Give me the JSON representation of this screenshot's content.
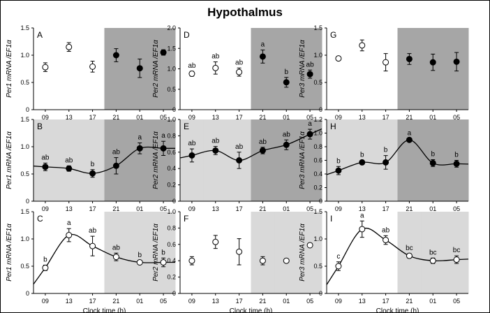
{
  "title": "Hypothalmus",
  "colors": {
    "white": "#ffffff",
    "light_gray": "#d9d9d9",
    "dark_gray": "#a6a6a6",
    "marker_filled": "#000000",
    "marker_open": "#ffffff",
    "curve": "#000000"
  },
  "x_categories": [
    "09",
    "13",
    "17",
    "21",
    "01",
    "05"
  ],
  "xlabel": "Clock time (h)",
  "chart_data": [
    {
      "id": "A",
      "type": "scatter",
      "label": "A",
      "ylabel": "Per1 mRNA /EF1α",
      "ylim": [
        0,
        1.5
      ],
      "yticks": [
        "0",
        "0.5",
        "1.0",
        "1.5"
      ],
      "ytick_values": [
        0,
        0.5,
        1.0,
        1.5
      ],
      "background": [
        "white",
        "white",
        "white",
        "dark_gray",
        "dark_gray",
        "dark_gray"
      ],
      "markers": [
        "open",
        "open",
        "open",
        "filled",
        "filled",
        "filled"
      ],
      "values": [
        0.78,
        1.15,
        0.79,
        1.0,
        0.76,
        1.05
      ],
      "errors": [
        0.08,
        0.08,
        0.1,
        0.12,
        0.17,
        0.05
      ],
      "sig": [
        "",
        "",
        "",
        "",
        "",
        ""
      ],
      "curve": false
    },
    {
      "id": "D",
      "type": "scatter",
      "label": "D",
      "ylabel": "Per2 mRNA /EF1α",
      "ylim": [
        0,
        2.0
      ],
      "yticks": [
        "0",
        "0.5",
        "1.0",
        "1.5",
        "2.0"
      ],
      "ytick_values": [
        0,
        0.5,
        1.0,
        1.5,
        2.0
      ],
      "background": [
        "white",
        "white",
        "white",
        "dark_gray",
        "dark_gray",
        "dark_gray"
      ],
      "markers": [
        "open",
        "open",
        "open",
        "filled",
        "filled",
        "filled"
      ],
      "values": [
        0.88,
        1.02,
        0.92,
        1.3,
        0.67,
        0.87
      ],
      "errors": [
        0.06,
        0.15,
        0.1,
        0.16,
        0.12,
        0.1
      ],
      "sig": [
        "ab",
        "ab",
        "ab",
        "a",
        "b",
        "ab"
      ],
      "curve": false
    },
    {
      "id": "G",
      "type": "scatter",
      "label": "G",
      "ylabel": "Per3 mRNA /EF1α",
      "ylim": [
        0,
        1.5
      ],
      "yticks": [
        "0",
        "0.5",
        "1.0",
        "1.5"
      ],
      "ytick_values": [
        0,
        0.5,
        1.0,
        1.5
      ],
      "background": [
        "white",
        "white",
        "white",
        "dark_gray",
        "dark_gray",
        "dark_gray"
      ],
      "markers": [
        "open",
        "open",
        "open",
        "filled",
        "filled",
        "filled"
      ],
      "values": [
        0.94,
        1.18,
        0.87,
        0.93,
        0.87,
        0.88
      ],
      "errors": [
        0.02,
        0.1,
        0.16,
        0.1,
        0.15,
        0.17
      ],
      "sig": [
        "",
        "",
        "",
        "",
        "",
        ""
      ],
      "curve": false
    },
    {
      "id": "B",
      "type": "scatter",
      "label": "B",
      "ylabel": "Per1 mRNA /EF1α",
      "ylim": [
        0,
        1.5
      ],
      "yticks": [
        "0",
        "0.5",
        "1.0",
        "1.5"
      ],
      "ytick_values": [
        0,
        0.5,
        1.0,
        1.5
      ],
      "background": [
        "light_gray",
        "light_gray",
        "light_gray",
        "dark_gray",
        "dark_gray",
        "dark_gray"
      ],
      "markers": [
        "filled",
        "filled",
        "filled",
        "filled",
        "filled",
        "filled"
      ],
      "values": [
        0.63,
        0.6,
        0.51,
        0.65,
        0.97,
        0.97
      ],
      "errors": [
        0.07,
        0.05,
        0.07,
        0.15,
        0.1,
        0.13
      ],
      "sig": [
        "ab",
        "ab",
        "b",
        "ab",
        "a",
        "a"
      ],
      "curve": true
    },
    {
      "id": "E",
      "type": "scatter",
      "label": "E",
      "ylabel": "Per2 mRNA /EF1α",
      "ylim": [
        0,
        1.0
      ],
      "yticks": [
        "0",
        "0.2",
        "0.4",
        "0.6",
        "0.8",
        "1.0"
      ],
      "ytick_values": [
        0,
        0.2,
        0.4,
        0.6,
        0.8,
        1.0
      ],
      "background": [
        "light_gray",
        "light_gray",
        "light_gray",
        "dark_gray",
        "dark_gray",
        "dark_gray"
      ],
      "markers": [
        "filled",
        "filled",
        "filled",
        "filled",
        "filled",
        "filled"
      ],
      "values": [
        0.56,
        0.62,
        0.5,
        0.62,
        0.69,
        0.82
      ],
      "errors": [
        0.08,
        0.05,
        0.1,
        0.04,
        0.06,
        0.06
      ],
      "sig": [
        "ab",
        "ab",
        "ab",
        "ab",
        "ab",
        "a"
      ],
      "curve": true
    },
    {
      "id": "H",
      "type": "scatter",
      "label": "H",
      "ylabel": "Per3 mRNA /EF1α",
      "ylim": [
        0,
        1.2
      ],
      "yticks": [
        "0",
        "0.2",
        "0.4",
        "0.6",
        "0.8",
        "1.0",
        "1.2"
      ],
      "ytick_values": [
        0,
        0.2,
        0.4,
        0.6,
        0.8,
        1.0,
        1.2
      ],
      "background": [
        "light_gray",
        "light_gray",
        "light_gray",
        "dark_gray",
        "dark_gray",
        "dark_gray"
      ],
      "markers": [
        "filled",
        "filled",
        "filled",
        "filled",
        "filled",
        "filled"
      ],
      "values": [
        0.45,
        0.57,
        0.57,
        0.9,
        0.56,
        0.55
      ],
      "errors": [
        0.06,
        0.03,
        0.1,
        0.02,
        0.05,
        0.05
      ],
      "sig": [
        "b",
        "b",
        "b",
        "a",
        "b",
        "b"
      ],
      "curve": true
    },
    {
      "id": "C",
      "type": "scatter",
      "label": "C",
      "ylabel": "Per1 mRNA /EF1α",
      "ylim": [
        0,
        1.5
      ],
      "yticks": [
        "0",
        "0.5",
        "1.0",
        "1.5"
      ],
      "ytick_values": [
        0,
        0.5,
        1.0,
        1.5
      ],
      "background": [
        "white",
        "white",
        "white",
        "light_gray",
        "light_gray",
        "light_gray"
      ],
      "markers": [
        "open",
        "open",
        "open",
        "open",
        "open",
        "open"
      ],
      "values": [
        0.47,
        1.07,
        0.87,
        0.67,
        0.57,
        0.57
      ],
      "errors": [
        0.05,
        0.12,
        0.18,
        0.07,
        0.03,
        0.08
      ],
      "sig": [
        "b",
        "a",
        "ab",
        "ab",
        "b",
        "b"
      ],
      "curve": true
    },
    {
      "id": "F",
      "type": "scatter",
      "label": "F",
      "ylabel": "Per2 mRNA /EF1α",
      "ylim": [
        0,
        1.0
      ],
      "yticks": [
        "0",
        "0.2",
        "0.4",
        "0.6",
        "0.8",
        "1.0"
      ],
      "ytick_values": [
        0,
        0.2,
        0.4,
        0.6,
        0.8,
        1.0
      ],
      "background": [
        "white",
        "white",
        "white",
        "light_gray",
        "light_gray",
        "light_gray"
      ],
      "markers": [
        "open",
        "open",
        "open",
        "open",
        "open",
        "open"
      ],
      "values": [
        0.4,
        0.63,
        0.51,
        0.4,
        0.4,
        0.59
      ],
      "errors": [
        0.05,
        0.08,
        0.16,
        0.05,
        0.0,
        0.0
      ],
      "sig": [
        "",
        "",
        "",
        "",
        "",
        ""
      ],
      "curve": false
    },
    {
      "id": "I",
      "type": "scatter",
      "label": "I",
      "ylabel": "Per3 mRNA /EF1α",
      "ylim": [
        0,
        1.5
      ],
      "yticks": [
        "0",
        "0.5",
        "1.0",
        "1.5"
      ],
      "ytick_values": [
        0,
        0.5,
        1.0,
        1.5
      ],
      "background": [
        "white",
        "white",
        "white",
        "light_gray",
        "light_gray",
        "light_gray"
      ],
      "markers": [
        "open",
        "open",
        "open",
        "open",
        "open",
        "open"
      ],
      "values": [
        0.5,
        1.18,
        0.98,
        0.69,
        0.6,
        0.62
      ],
      "errors": [
        0.08,
        0.15,
        0.08,
        0.04,
        0.05,
        0.07
      ],
      "sig": [
        "c",
        "a",
        "ab",
        "bc",
        "bc",
        "bc"
      ],
      "curve": true
    }
  ]
}
